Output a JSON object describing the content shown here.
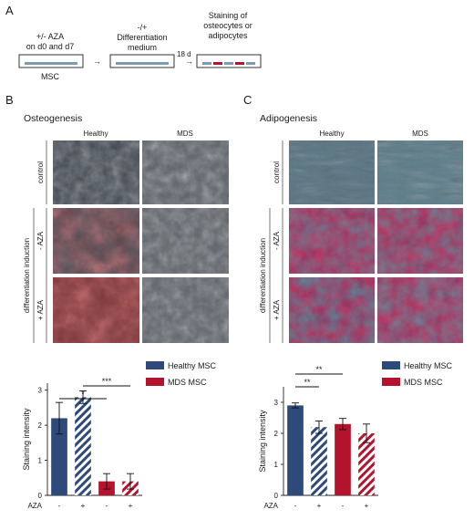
{
  "panel_a": {
    "letter": "A",
    "step1_lines": [
      "+/- AZA",
      "on d0 and d7"
    ],
    "step1_label": "MSC",
    "step2_lines": [
      "-/+",
      "Differentiation",
      "medium"
    ],
    "duration": "18 d",
    "step3_lines": [
      "Staining of",
      "osteocytes or",
      "adipocytes"
    ]
  },
  "panel_b": {
    "letter": "B",
    "title": "Osteogenesis",
    "col_headers": [
      "Healthy",
      "MDS"
    ],
    "row_control": "control",
    "group_label": "differentiation induction",
    "row_labels": [
      "- AZA",
      "+ AZA"
    ]
  },
  "panel_c": {
    "letter": "C",
    "title": "Adipogenesis",
    "col_headers": [
      "Healthy",
      "MDS"
    ],
    "row_control": "control",
    "group_label": "differentiation induction",
    "row_labels": [
      "- AZA",
      "+ AZA"
    ]
  },
  "colors": {
    "healthy": "#2e4a7a",
    "mds": "#b5122e",
    "osteo_healthy_ctrl": "#3e4650",
    "osteo_mds": "#5a6068",
    "osteo_red": "#b94848",
    "adipo_ctrl": "#5d7885",
    "adipo_red": "#a83434"
  },
  "chart_data": [
    {
      "type": "bar",
      "panel": "B",
      "ylabel": "Staining intensity",
      "xgroup_label": "AZA",
      "categories": [
        "-",
        "+",
        "-",
        "+"
      ],
      "series": [
        {
          "name": "Healthy MSC",
          "values": [
            2.2,
            2.8,
            null,
            null
          ],
          "errors": [
            0.45,
            0.18,
            null,
            null
          ]
        },
        {
          "name": "MDS MSC",
          "values": [
            null,
            null,
            0.4,
            0.4
          ],
          "errors": [
            null,
            null,
            0.22,
            0.22
          ]
        }
      ],
      "hatched": [
        false,
        true,
        false,
        true
      ],
      "ylim": [
        0,
        3.2
      ],
      "yticks": [
        0,
        1,
        2,
        3
      ],
      "significance": [
        {
          "from": 0,
          "to": 2,
          "label": "*"
        },
        {
          "from": 1,
          "to": 3,
          "label": "***"
        }
      ],
      "legend": [
        "Healthy MSC",
        "MDS MSC"
      ]
    },
    {
      "type": "bar",
      "panel": "C",
      "ylabel": "Staining intensity",
      "xgroup_label": "AZA",
      "categories": [
        "-",
        "+",
        "-",
        "+"
      ],
      "series": [
        {
          "name": "Healthy MSC",
          "values": [
            2.9,
            2.2,
            null,
            null
          ],
          "errors": [
            0.08,
            0.2,
            null,
            null
          ]
        },
        {
          "name": "MDS MSC",
          "values": [
            null,
            null,
            2.3,
            2.0
          ],
          "errors": [
            null,
            null,
            0.18,
            0.3
          ]
        }
      ],
      "hatched": [
        false,
        true,
        false,
        true
      ],
      "ylim": [
        0,
        3.5
      ],
      "yticks": [
        0,
        1,
        2,
        3
      ],
      "significance": [
        {
          "from": 0,
          "to": 1,
          "label": "**"
        },
        {
          "from": 0,
          "to": 2,
          "label": "**"
        }
      ],
      "legend": [
        "Healthy MSC",
        "MDS MSC"
      ]
    }
  ]
}
